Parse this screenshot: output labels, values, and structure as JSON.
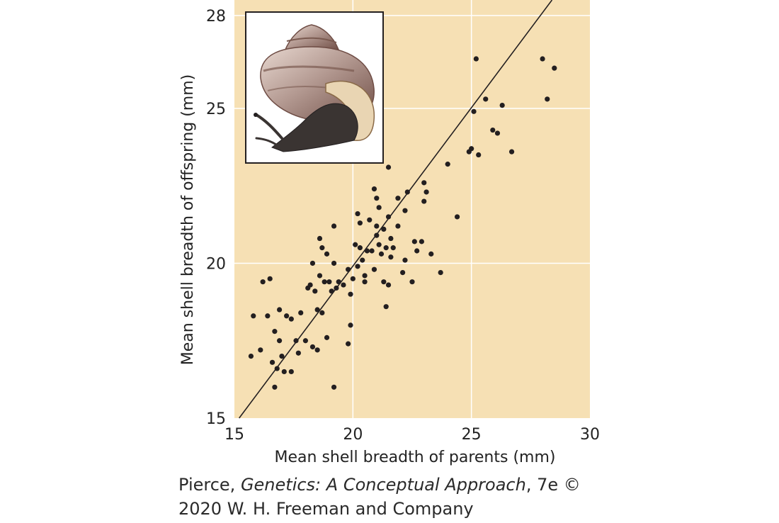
{
  "colors": {
    "plot_background": "#f6e0b4",
    "gridline": "#ffffff",
    "point": "#231f20",
    "regression_line": "#231f20",
    "inset_border": "#231f20",
    "shell_main": "#b49a92",
    "shell_band": "#7a5a50",
    "snail_body": "#3a3432"
  },
  "inset": {
    "icon": "snail-illustration"
  },
  "credit": {
    "line1_prefix": "Pierce, ",
    "line1_title": "Genetics: A Conceptual Approach",
    "line1_suffix": ", 7e ©",
    "line2": "2020 W. H. Freeman and Company"
  },
  "chart_data": {
    "type": "scatter",
    "xlabel": "Mean shell breadth of parents (mm)",
    "ylabel": "Mean shell breadth of offspring (mm)",
    "xlim": [
      15,
      30
    ],
    "ylim": [
      15,
      28.5
    ],
    "xticks": [
      15,
      20,
      25,
      30
    ],
    "yticks": [
      15,
      20,
      25,
      28
    ],
    "grid": true,
    "regression_line": [
      [
        15.2,
        15.0
      ],
      [
        28.4,
        28.5
      ]
    ],
    "points": [
      [
        15.7,
        17.0
      ],
      [
        15.8,
        18.3
      ],
      [
        16.1,
        17.2
      ],
      [
        16.2,
        19.4
      ],
      [
        16.4,
        18.3
      ],
      [
        16.5,
        19.5
      ],
      [
        16.6,
        16.8
      ],
      [
        16.7,
        17.8
      ],
      [
        16.7,
        16.0
      ],
      [
        16.8,
        16.6
      ],
      [
        16.9,
        18.5
      ],
      [
        16.9,
        17.5
      ],
      [
        17.0,
        17.0
      ],
      [
        17.1,
        16.5
      ],
      [
        17.2,
        18.3
      ],
      [
        17.4,
        18.2
      ],
      [
        17.4,
        16.5
      ],
      [
        17.6,
        17.5
      ],
      [
        17.7,
        17.1
      ],
      [
        17.8,
        18.4
      ],
      [
        18.0,
        17.5
      ],
      [
        18.1,
        19.2
      ],
      [
        18.2,
        19.3
      ],
      [
        18.3,
        17.3
      ],
      [
        18.3,
        20.0
      ],
      [
        18.4,
        19.1
      ],
      [
        18.5,
        17.2
      ],
      [
        18.5,
        18.5
      ],
      [
        18.6,
        20.8
      ],
      [
        18.6,
        19.6
      ],
      [
        18.7,
        20.5
      ],
      [
        18.7,
        18.4
      ],
      [
        18.8,
        19.4
      ],
      [
        18.9,
        17.6
      ],
      [
        18.9,
        20.3
      ],
      [
        19.0,
        19.4
      ],
      [
        19.1,
        19.1
      ],
      [
        19.2,
        20.0
      ],
      [
        19.2,
        21.2
      ],
      [
        19.2,
        16.0
      ],
      [
        19.3,
        19.2
      ],
      [
        19.4,
        19.4
      ],
      [
        19.6,
        19.3
      ],
      [
        19.8,
        17.4
      ],
      [
        19.8,
        19.8
      ],
      [
        19.9,
        19.0
      ],
      [
        19.9,
        18.0
      ],
      [
        20.0,
        19.5
      ],
      [
        20.1,
        20.6
      ],
      [
        20.2,
        21.6
      ],
      [
        20.2,
        19.9
      ],
      [
        20.3,
        20.5
      ],
      [
        20.3,
        21.3
      ],
      [
        20.4,
        20.1
      ],
      [
        20.5,
        19.4
      ],
      [
        20.5,
        19.6
      ],
      [
        20.6,
        20.4
      ],
      [
        20.7,
        21.4
      ],
      [
        20.8,
        20.4
      ],
      [
        20.9,
        19.8
      ],
      [
        20.9,
        22.4
      ],
      [
        21.0,
        21.2
      ],
      [
        21.0,
        22.1
      ],
      [
        21.0,
        20.9
      ],
      [
        21.1,
        20.6
      ],
      [
        21.1,
        21.8
      ],
      [
        21.2,
        20.3
      ],
      [
        21.3,
        19.4
      ],
      [
        21.3,
        21.1
      ],
      [
        21.4,
        20.5
      ],
      [
        21.4,
        18.6
      ],
      [
        21.5,
        19.3
      ],
      [
        21.5,
        21.5
      ],
      [
        21.5,
        23.1
      ],
      [
        21.6,
        20.8
      ],
      [
        21.6,
        20.2
      ],
      [
        21.7,
        20.5
      ],
      [
        21.9,
        22.1
      ],
      [
        21.9,
        21.2
      ],
      [
        22.1,
        19.7
      ],
      [
        22.2,
        21.7
      ],
      [
        22.2,
        20.1
      ],
      [
        22.3,
        22.3
      ],
      [
        22.5,
        19.4
      ],
      [
        22.6,
        20.7
      ],
      [
        22.7,
        20.4
      ],
      [
        22.9,
        20.7
      ],
      [
        23.0,
        22.0
      ],
      [
        23.0,
        22.6
      ],
      [
        23.1,
        22.3
      ],
      [
        23.3,
        20.3
      ],
      [
        23.7,
        19.7
      ],
      [
        24.0,
        23.2
      ],
      [
        24.4,
        21.5
      ],
      [
        24.9,
        23.6
      ],
      [
        25.0,
        23.7
      ],
      [
        25.1,
        24.9
      ],
      [
        25.2,
        26.6
      ],
      [
        25.3,
        23.5
      ],
      [
        25.6,
        25.3
      ],
      [
        25.9,
        24.3
      ],
      [
        26.1,
        24.2
      ],
      [
        26.3,
        25.1
      ],
      [
        26.7,
        23.6
      ],
      [
        28.0,
        26.6
      ],
      [
        28.2,
        25.3
      ],
      [
        28.5,
        26.3
      ]
    ]
  }
}
